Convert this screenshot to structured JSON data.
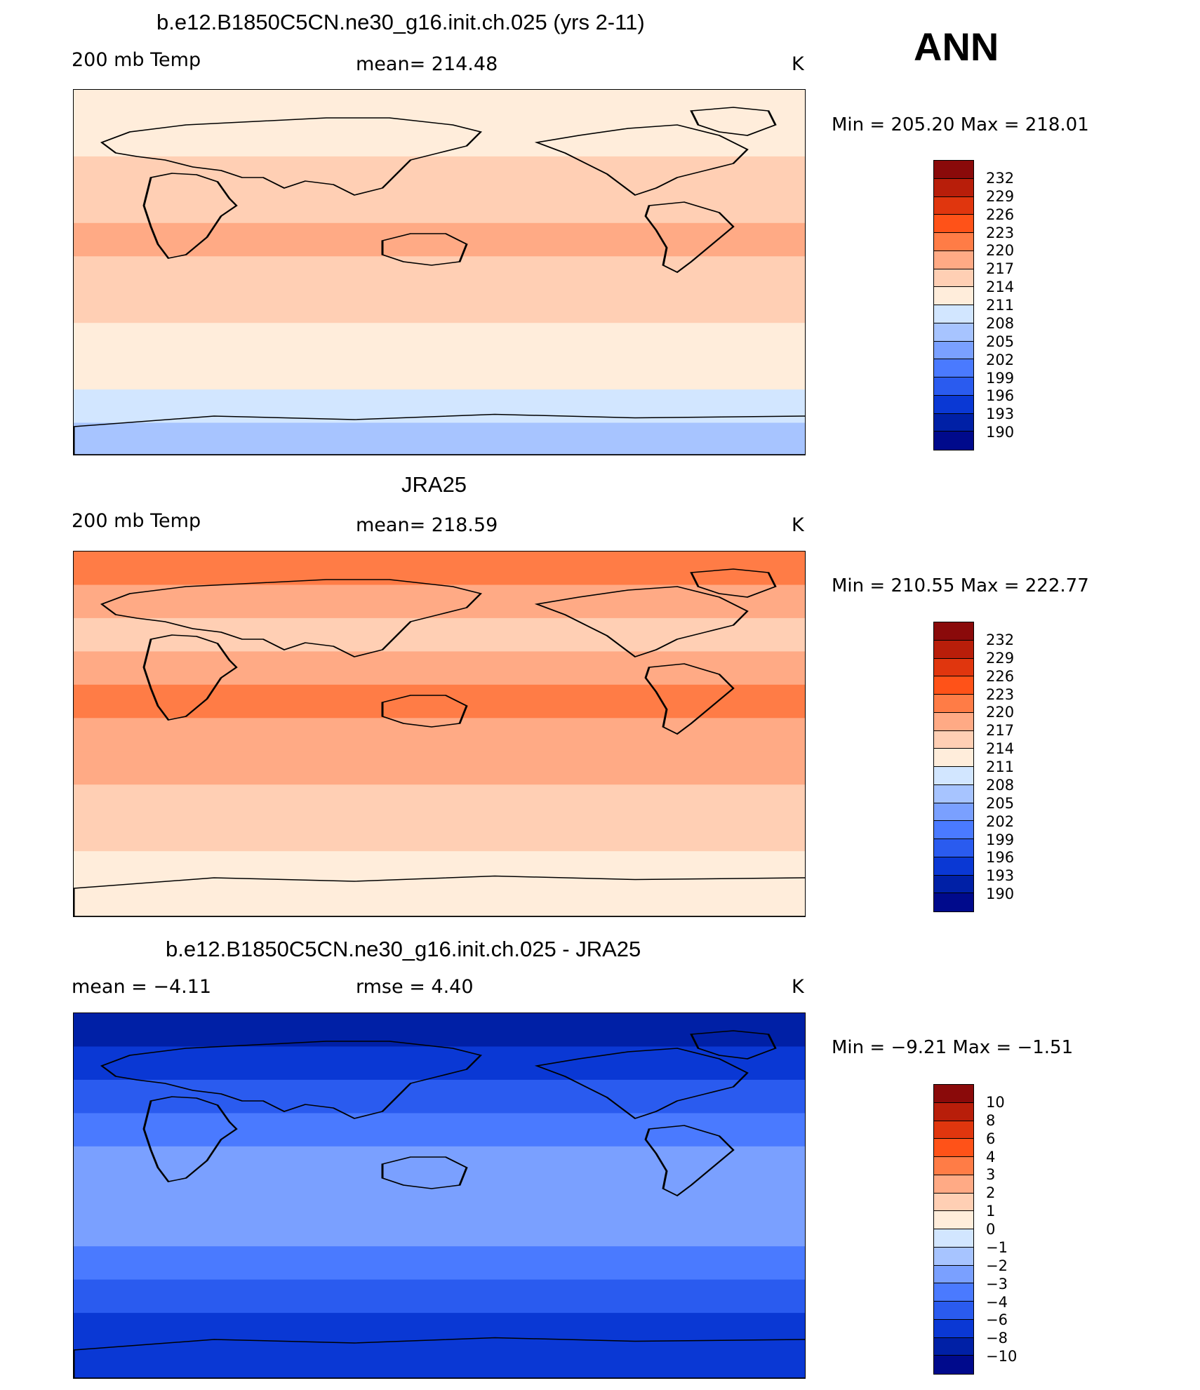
{
  "season": "ANN",
  "palette_main": [
    "#000a8c",
    "#0020a6",
    "#0a38d4",
    "#2a5bef",
    "#4a7aff",
    "#7aa0ff",
    "#a7c4ff",
    "#d2e6ff",
    "#ffeddb",
    "#ffcfb4",
    "#ffaa85",
    "#ff7c46",
    "#ff5218",
    "#e0360e",
    "#b81e0a",
    "#8a0a0a"
  ],
  "panels": [
    {
      "title": "b.e12.B1850C5CN.ne30_g16.init.ch.025 (yrs 2-11)",
      "left": "200 mb Temp",
      "center": "mean=  214.48",
      "units": "K",
      "minmax": "Min  =  205.20  Max  =  218.01",
      "bands": [
        8,
        8,
        9,
        9,
        10,
        9,
        9,
        8,
        8,
        7,
        6
      ],
      "colorbar_labels": [
        "232",
        "229",
        "226",
        "223",
        "220",
        "217",
        "214",
        "211",
        "208",
        "205",
        "202",
        "199",
        "196",
        "193",
        "190"
      ]
    },
    {
      "title": "JRA25",
      "left": "200 mb Temp",
      "center": "mean=  218.59",
      "units": "K",
      "minmax": "Min  =  210.55  Max  =  222.77",
      "bands": [
        11,
        10,
        9,
        10,
        11,
        10,
        10,
        9,
        9,
        8,
        8
      ],
      "colorbar_labels": [
        "232",
        "229",
        "226",
        "223",
        "220",
        "217",
        "214",
        "211",
        "208",
        "205",
        "202",
        "199",
        "196",
        "193",
        "190"
      ]
    },
    {
      "title": "b.e12.B1850C5CN.ne30_g16.init.ch.025 - JRA25",
      "left": "mean =    −4.11",
      "center": "rmse =     4.40",
      "units": "K",
      "minmax": "Min  =    −9.21  Max  =    −1.51",
      "bands": [
        1,
        2,
        3,
        4,
        5,
        5,
        5,
        4,
        3,
        2,
        2
      ],
      "colorbar_labels": [
        "10",
        "8",
        "6",
        "4",
        "3",
        "2",
        "1",
        "0",
        "−1",
        "−2",
        "−3",
        "−4",
        "−6",
        "−8",
        "−10"
      ]
    }
  ]
}
